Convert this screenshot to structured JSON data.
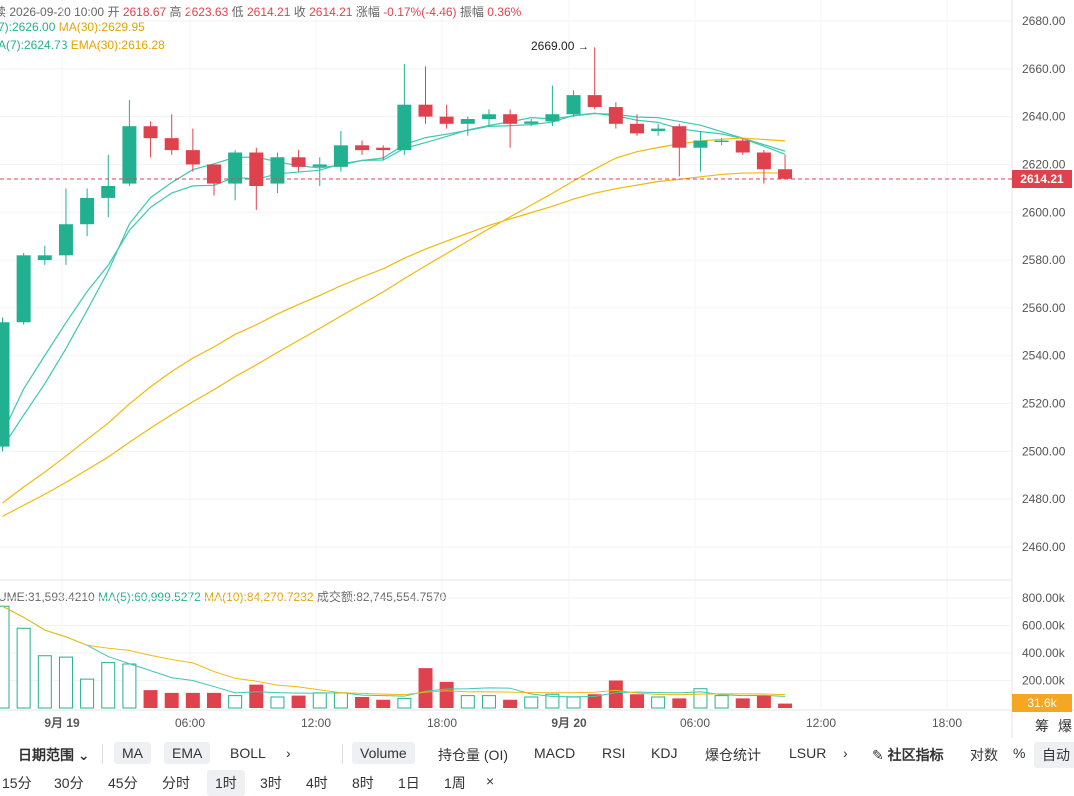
{
  "header": {
    "title_part": "续",
    "datetime": "2026-09-20 10:00",
    "open_label": "开",
    "open": "2618.67",
    "high_label": "高",
    "high": "2623.63",
    "low_label": "低",
    "low": "2614.21",
    "close_label": "收",
    "close": "2614.21",
    "change_label": "涨幅",
    "change": "-0.17%(-4.46)",
    "amplitude_label": "振幅",
    "amplitude": "0.36%"
  },
  "ma_row": {
    "ma7": "7):2626.00",
    "ma30": "MA(30):2629.95"
  },
  "ema_row": {
    "ema7": "A(7):2624.73",
    "ema30": "EMA(30):2616.28"
  },
  "volume_row": {
    "volume": "UME:31,593.4210",
    "ma5": "MA(5):60,999.5272",
    "ma10": "MA(10):84,270.7232",
    "turnover": "成交额:82,745,554.7570"
  },
  "price_axis": [
    "2680.00",
    "2660.00",
    "2640.00",
    "2620.00",
    "2600.00",
    "2580.00",
    "2560.00",
    "2540.00",
    "2520.00",
    "2500.00",
    "2480.00",
    "2460.00"
  ],
  "volume_axis": [
    "800.00k",
    "600.00k",
    "400.00k",
    "200.00k"
  ],
  "time_axis": [
    "9月 19",
    "06:00",
    "12:00",
    "18:00",
    "9月 20",
    "06:00",
    "12:00",
    "18:00"
  ],
  "current_price_tag": "2614.21",
  "current_volume_tag": "31.6k",
  "max_annotation": "2669.00",
  "corner": {
    "chip": "筹",
    "burst": "爆"
  },
  "colors": {
    "up": "#21b191",
    "down": "#e0424d",
    "ma_short": "#3ec8b0",
    "ma_long": "#f0b90b"
  },
  "chart_data": {
    "type": "candlestick",
    "y_range": [
      2450,
      2685
    ],
    "candles": [
      {
        "o": 2502,
        "c": 2554,
        "h": 2556,
        "l": 2500
      },
      {
        "o": 2554,
        "c": 2582,
        "h": 2583,
        "l": 2553
      },
      {
        "o": 2580,
        "c": 2582,
        "h": 2586,
        "l": 2578
      },
      {
        "o": 2582,
        "c": 2595,
        "h": 2610,
        "l": 2578
      },
      {
        "o": 2595,
        "c": 2606,
        "h": 2610,
        "l": 2590
      },
      {
        "o": 2606,
        "c": 2611,
        "h": 2624,
        "l": 2598
      },
      {
        "o": 2612,
        "c": 2636,
        "h": 2647,
        "l": 2611
      },
      {
        "o": 2636,
        "c": 2631,
        "h": 2638,
        "l": 2623
      },
      {
        "o": 2631,
        "c": 2626,
        "h": 2641,
        "l": 2624
      },
      {
        "o": 2626,
        "c": 2620,
        "h": 2635,
        "l": 2617
      },
      {
        "o": 2620,
        "c": 2612,
        "h": 2620,
        "l": 2607
      },
      {
        "o": 2612,
        "c": 2625,
        "h": 2626,
        "l": 2605
      },
      {
        "o": 2625,
        "c": 2611,
        "h": 2627,
        "l": 2601
      },
      {
        "o": 2612,
        "c": 2623,
        "h": 2625,
        "l": 2608
      },
      {
        "o": 2623,
        "c": 2619,
        "h": 2626,
        "l": 2617
      },
      {
        "o": 2619,
        "c": 2620,
        "h": 2623,
        "l": 2611
      },
      {
        "o": 2619,
        "c": 2628,
        "h": 2634,
        "l": 2617
      },
      {
        "o": 2628,
        "c": 2626,
        "h": 2630,
        "l": 2624
      },
      {
        "o": 2627,
        "c": 2626,
        "h": 2628,
        "l": 2622
      },
      {
        "o": 2626,
        "c": 2645,
        "h": 2662,
        "l": 2624
      },
      {
        "o": 2645,
        "c": 2640,
        "h": 2661,
        "l": 2637
      },
      {
        "o": 2640,
        "c": 2637,
        "h": 2645,
        "l": 2635
      },
      {
        "o": 2637,
        "c": 2639,
        "h": 2640,
        "l": 2632
      },
      {
        "o": 2639,
        "c": 2641,
        "h": 2643,
        "l": 2636
      },
      {
        "o": 2641,
        "c": 2637,
        "h": 2643,
        "l": 2627
      },
      {
        "o": 2637,
        "c": 2638,
        "h": 2639,
        "l": 2636
      },
      {
        "o": 2638,
        "c": 2641,
        "h": 2653,
        "l": 2636
      },
      {
        "o": 2641,
        "c": 2649,
        "h": 2651,
        "l": 2640
      },
      {
        "o": 2649,
        "c": 2644,
        "h": 2669,
        "l": 2643
      },
      {
        "o": 2644,
        "c": 2637,
        "h": 2646,
        "l": 2635
      },
      {
        "o": 2637,
        "c": 2633,
        "h": 2641,
        "l": 2632
      },
      {
        "o": 2634,
        "c": 2635,
        "h": 2637,
        "l": 2632
      },
      {
        "o": 2636,
        "c": 2627,
        "h": 2637,
        "l": 2615
      },
      {
        "o": 2627,
        "c": 2630,
        "h": 2634,
        "l": 2617
      },
      {
        "o": 2630,
        "c": 2630,
        "h": 2631,
        "l": 2628
      },
      {
        "o": 2630,
        "c": 2625,
        "h": 2631,
        "l": 2624
      },
      {
        "o": 2625,
        "c": 2618,
        "h": 2626,
        "l": 2612
      },
      {
        "o": 2618,
        "c": 2614,
        "h": 2624,
        "l": 2614
      }
    ],
    "volumes_k": [
      740,
      580,
      380,
      370,
      210,
      330,
      320,
      130,
      110,
      110,
      110,
      90,
      170,
      80,
      90,
      110,
      110,
      80,
      60,
      70,
      290,
      190,
      90,
      90,
      60,
      80,
      100,
      80,
      100,
      200,
      100,
      80,
      70,
      140,
      90,
      70,
      90,
      32
    ]
  },
  "toolbar1": {
    "date_range": "日期范围",
    "ma": "MA",
    "ema": "EMA",
    "boll": "BOLL",
    "volume": "Volume",
    "oi": "持仓量 (OI)",
    "macd": "MACD",
    "rsi": "RSI",
    "kdj": "KDJ",
    "liq": "爆仓统计",
    "lsur": "LSUR",
    "community": "社区指标",
    "log": "对数",
    "percent": "%",
    "auto": "自动"
  },
  "toolbar2": [
    "15分",
    "30分",
    "45分",
    "分时",
    "1时",
    "3时",
    "4时",
    "8时",
    "1日",
    "1周",
    "×"
  ]
}
